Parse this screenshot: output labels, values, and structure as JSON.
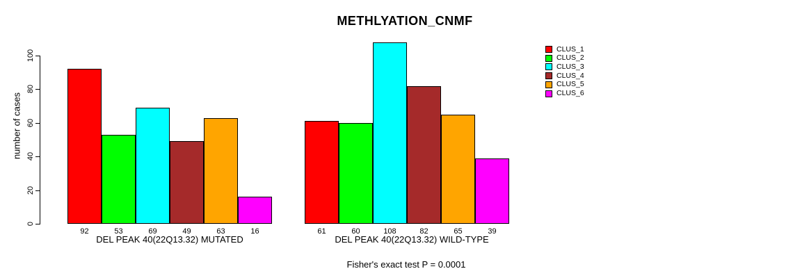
{
  "chart_data": {
    "type": "bar",
    "title": "METHLYATION_CNMF",
    "ylabel": "number of cases",
    "yticks": [
      0,
      20,
      40,
      60,
      80,
      100
    ],
    "ylim": [
      0,
      110
    ],
    "grid": false,
    "legend_position": "right-outside",
    "legend": [
      {
        "label": "CLUS_1",
        "color": "#FF0000"
      },
      {
        "label": "CLUS_2",
        "color": "#00FF00"
      },
      {
        "label": "CLUS_3",
        "color": "#00FFFF"
      },
      {
        "label": "CLUS_4",
        "color": "#A52A2A"
      },
      {
        "label": "CLUS_5",
        "color": "#FFA500"
      },
      {
        "label": "CLUS_6",
        "color": "#FF00FF"
      }
    ],
    "groups": [
      {
        "label": "DEL PEAK 40(22Q13.32) MUTATED",
        "values": [
          92,
          53,
          69,
          49,
          63,
          16
        ]
      },
      {
        "label": "DEL PEAK 40(22Q13.32) WILD-TYPE",
        "values": [
          61,
          60,
          108,
          82,
          65,
          39
        ]
      }
    ],
    "annotation": "Fisher's exact test P = 0.0001"
  }
}
